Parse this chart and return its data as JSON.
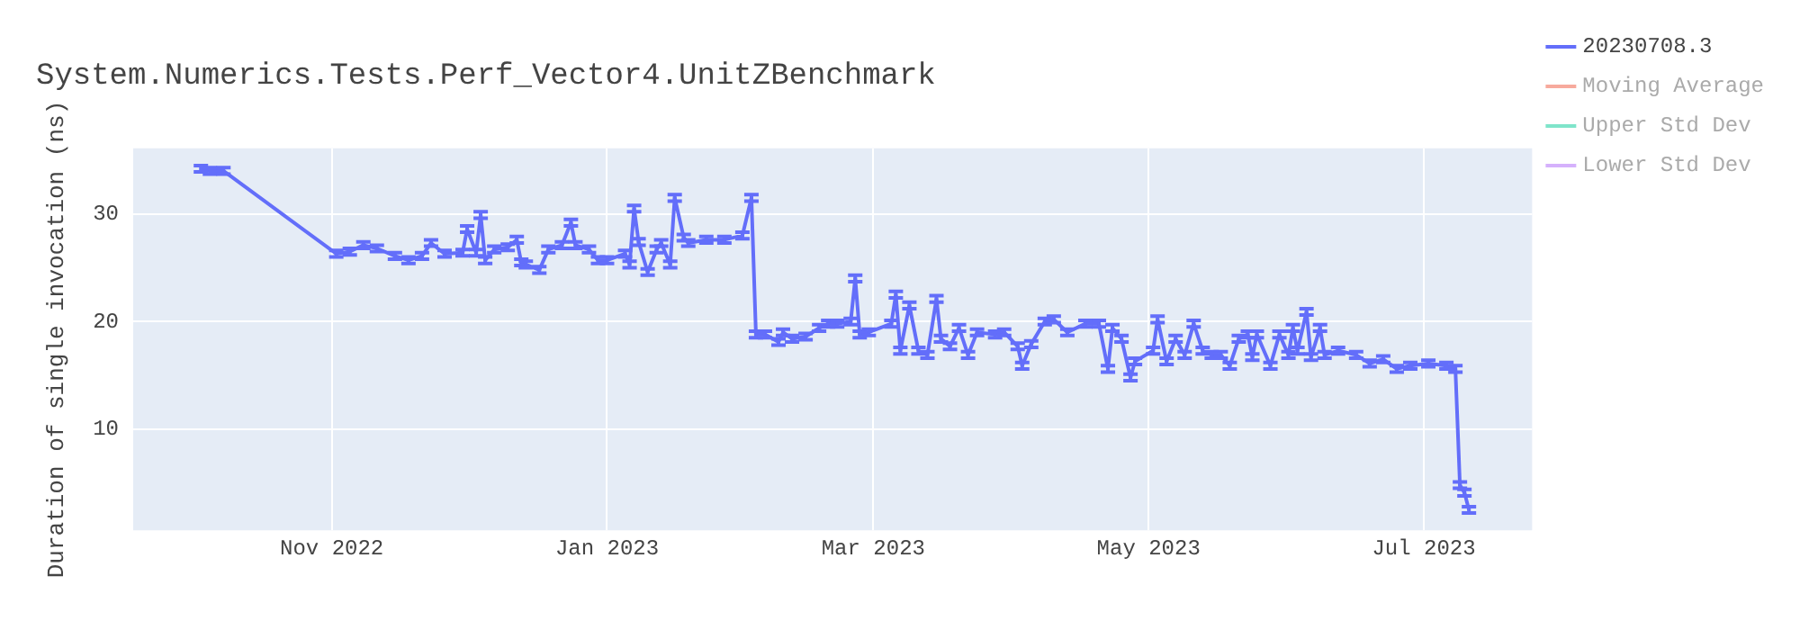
{
  "chart_data": {
    "type": "line",
    "title": "System.Numerics.Tests.Perf_Vector4.UnitZBenchmark",
    "ylabel": "Duration of single invocation (ns)",
    "x": [
      "2022-10-03",
      "2022-10-05",
      "2022-10-08",
      "2022-11-02",
      "2022-11-05",
      "2022-11-08",
      "2022-11-11",
      "2022-11-15",
      "2022-11-18",
      "2022-11-21",
      "2022-11-23",
      "2022-11-26",
      "2022-11-30",
      "2022-12-01",
      "2022-12-03",
      "2022-12-04",
      "2022-12-05",
      "2022-12-07",
      "2022-12-10",
      "2022-12-12",
      "2022-12-13",
      "2022-12-14",
      "2022-12-17",
      "2022-12-19",
      "2022-12-22",
      "2022-12-24",
      "2022-12-25",
      "2022-12-28",
      "2022-12-30",
      "2023-01-01",
      "2023-01-05",
      "2023-01-06",
      "2023-01-07",
      "2023-01-08",
      "2023-01-10",
      "2023-01-12",
      "2023-01-13",
      "2023-01-15",
      "2023-01-16",
      "2023-01-18",
      "2023-01-19",
      "2023-01-23",
      "2023-01-27",
      "2023-01-31",
      "2023-02-02",
      "2023-02-03",
      "2023-02-05",
      "2023-02-08",
      "2023-02-09",
      "2023-02-11",
      "2023-02-14",
      "2023-02-17",
      "2023-02-19",
      "2023-02-21",
      "2023-02-24",
      "2023-02-25",
      "2023-02-26",
      "2023-02-28",
      "2023-03-05",
      "2023-03-06",
      "2023-03-07",
      "2023-03-09",
      "2023-03-11",
      "2023-03-13",
      "2023-03-15",
      "2023-03-16",
      "2023-03-18",
      "2023-03-20",
      "2023-03-22",
      "2023-03-24",
      "2023-03-28",
      "2023-03-30",
      "2023-04-02",
      "2023-04-03",
      "2023-04-05",
      "2023-04-08",
      "2023-04-10",
      "2023-04-13",
      "2023-04-17",
      "2023-04-20",
      "2023-04-22",
      "2023-04-23",
      "2023-04-25",
      "2023-04-27",
      "2023-04-28",
      "2023-05-02",
      "2023-05-03",
      "2023-05-05",
      "2023-05-07",
      "2023-05-09",
      "2023-05-11",
      "2023-05-13",
      "2023-05-15",
      "2023-05-17",
      "2023-05-19",
      "2023-05-21",
      "2023-05-23",
      "2023-05-24",
      "2023-05-25",
      "2023-05-28",
      "2023-05-30",
      "2023-06-01",
      "2023-06-02",
      "2023-06-03",
      "2023-06-05",
      "2023-06-06",
      "2023-06-08",
      "2023-06-09",
      "2023-06-12",
      "2023-06-16",
      "2023-06-19",
      "2023-06-22",
      "2023-06-25",
      "2023-06-28",
      "2023-07-02",
      "2023-07-06",
      "2023-07-08",
      "2023-07-09",
      "2023-07-10",
      "2023-07-11"
    ],
    "series": [
      {
        "name": "20230708.3",
        "color": "#636efa",
        "values": [
          34.2,
          34.0,
          34.0,
          26.3,
          26.5,
          27.1,
          26.8,
          26.1,
          25.7,
          26.1,
          27.3,
          26.3,
          26.4,
          28.6,
          26.4,
          29.9,
          25.7,
          26.7,
          26.9,
          27.6,
          25.5,
          25.3,
          24.8,
          26.7,
          27.1,
          29.2,
          27.1,
          26.7,
          25.7,
          25.7,
          26.3,
          25.3,
          30.5,
          27.4,
          24.6,
          26.7,
          27.3,
          25.3,
          31.5,
          27.8,
          27.3,
          27.6,
          27.6,
          28.0,
          31.5,
          18.8,
          18.8,
          18.1,
          19.0,
          18.4,
          18.6,
          19.4,
          19.8,
          19.8,
          20.0,
          24.0,
          18.8,
          19.0,
          19.8,
          22.5,
          17.3,
          21.5,
          17.3,
          16.9,
          22.1,
          18.4,
          17.7,
          19.4,
          16.9,
          19.0,
          18.8,
          19.0,
          17.7,
          15.9,
          17.9,
          20.0,
          20.2,
          19.0,
          19.8,
          19.8,
          15.6,
          19.4,
          18.4,
          14.8,
          16.3,
          17.3,
          20.2,
          16.3,
          18.4,
          16.9,
          19.8,
          17.3,
          16.9,
          16.9,
          15.9,
          18.4,
          18.8,
          16.7,
          18.8,
          15.9,
          18.8,
          16.9,
          19.4,
          17.3,
          20.9,
          16.7,
          19.4,
          16.9,
          17.3,
          16.9,
          16.1,
          16.5,
          15.6,
          15.9,
          16.1,
          15.9,
          15.6,
          4.8,
          4.1,
          2.5
        ],
        "errors": [
          0.3,
          0.3,
          0.3,
          0.3,
          0.3,
          0.3,
          0.3,
          0.3,
          0.3,
          0.3,
          0.3,
          0.3,
          0.3,
          0.3,
          0.3,
          0.3,
          0.3,
          0.3,
          0.3,
          0.3,
          0.3,
          0.3,
          0.3,
          0.3,
          0.3,
          0.3,
          0.3,
          0.3,
          0.3,
          0.3,
          0.3,
          0.3,
          0.3,
          0.3,
          0.3,
          0.3,
          0.3,
          0.3,
          0.3,
          0.3,
          0.3,
          0.3,
          0.3,
          0.3,
          0.3,
          0.3,
          0.3,
          0.3,
          0.3,
          0.3,
          0.3,
          0.3,
          0.3,
          0.3,
          0.3,
          0.3,
          0.3,
          0.3,
          0.3,
          0.3,
          0.3,
          0.3,
          0.3,
          0.3,
          0.3,
          0.3,
          0.3,
          0.3,
          0.3,
          0.3,
          0.3,
          0.3,
          0.3,
          0.3,
          0.3,
          0.3,
          0.3,
          0.3,
          0.3,
          0.3,
          0.3,
          0.3,
          0.3,
          0.3,
          0.3,
          0.3,
          0.3,
          0.3,
          0.3,
          0.3,
          0.3,
          0.3,
          0.3,
          0.3,
          0.3,
          0.3,
          0.3,
          0.3,
          0.3,
          0.3,
          0.3,
          0.3,
          0.3,
          0.3,
          0.3,
          0.3,
          0.3,
          0.3,
          0.3,
          0.3,
          0.3,
          0.3,
          0.3,
          0.3,
          0.3,
          0.3,
          0.3,
          0.3,
          0.3,
          0.3
        ]
      },
      {
        "name": "Moving Average",
        "color": "#ef553b",
        "values": [
          null,
          null,
          null,
          null,
          null,
          null,
          null,
          null,
          null,
          null,
          null,
          null,
          null,
          null,
          null,
          null,
          null,
          null,
          null,
          null,
          null,
          null,
          null,
          null,
          null,
          null,
          null,
          null,
          null,
          null,
          null,
          null,
          null,
          null,
          null,
          null,
          null,
          null,
          null,
          null,
          null,
          null,
          null,
          null,
          null,
          null,
          null,
          null,
          null,
          null,
          null,
          null,
          null,
          null,
          null,
          null,
          null,
          null,
          null,
          null,
          null,
          null,
          null,
          null,
          null,
          null,
          null,
          null,
          null,
          null,
          null,
          null,
          null,
          null,
          null,
          null,
          null,
          null,
          null,
          null,
          null,
          null,
          null,
          null,
          null,
          null,
          null,
          null,
          null,
          null,
          null,
          null,
          null,
          null,
          null,
          null,
          null,
          null,
          null,
          null,
          null,
          null,
          null,
          null,
          null,
          null,
          null,
          null,
          null,
          null,
          null,
          null,
          null,
          null,
          null,
          null,
          null,
          null,
          null,
          null
        ]
      },
      {
        "name": "Upper Std Dev",
        "color": "#00cc96",
        "values": [
          null,
          null,
          null,
          null,
          null,
          null,
          null,
          null,
          null,
          null,
          null,
          null,
          null,
          null,
          null,
          null,
          null,
          null,
          null,
          null,
          null,
          null,
          null,
          null,
          null,
          null,
          null,
          null,
          null,
          null,
          null,
          null,
          null,
          null,
          null,
          null,
          null,
          null,
          null,
          null,
          null,
          null,
          null,
          null,
          null,
          null,
          null,
          null,
          null,
          null,
          null,
          null,
          null,
          null,
          null,
          null,
          null,
          null,
          null,
          null,
          null,
          null,
          null,
          null,
          null,
          null,
          null,
          null,
          null,
          null,
          null,
          null,
          null,
          null,
          null,
          null,
          null,
          null,
          null,
          null,
          null,
          null,
          null,
          null,
          null,
          null,
          null,
          null,
          null,
          null,
          null,
          null,
          null,
          null,
          null,
          null,
          null,
          null,
          null,
          null,
          null,
          null,
          null,
          null,
          null,
          null,
          null,
          null,
          null,
          null,
          null,
          null,
          null,
          null,
          null,
          null,
          null,
          null,
          null,
          null
        ]
      },
      {
        "name": "Lower Std Dev",
        "color": "#ab63fa",
        "values": [
          null,
          null,
          null,
          null,
          null,
          null,
          null,
          null,
          null,
          null,
          null,
          null,
          null,
          null,
          null,
          null,
          null,
          null,
          null,
          null,
          null,
          null,
          null,
          null,
          null,
          null,
          null,
          null,
          null,
          null,
          null,
          null,
          null,
          null,
          null,
          null,
          null,
          null,
          null,
          null,
          null,
          null,
          null,
          null,
          null,
          null,
          null,
          null,
          null,
          null,
          null,
          null,
          null,
          null,
          null,
          null,
          null,
          null,
          null,
          null,
          null,
          null,
          null,
          null,
          null,
          null,
          null,
          null,
          null,
          null,
          null,
          null,
          null,
          null,
          null,
          null,
          null,
          null,
          null,
          null,
          null,
          null,
          null,
          null,
          null,
          null,
          null,
          null,
          null,
          null,
          null,
          null,
          null,
          null,
          null,
          null,
          null,
          null,
          null,
          null,
          null,
          null,
          null,
          null,
          null,
          null,
          null,
          null,
          null,
          null,
          null,
          null,
          null,
          null,
          null,
          null,
          null,
          null,
          null,
          null
        ]
      }
    ],
    "xlim": [
      "2022-09-18",
      "2023-07-25"
    ],
    "ylim": [
      0.6,
      36.1
    ],
    "xticks": [
      {
        "value": "2022-11-01",
        "label": "Nov 2022"
      },
      {
        "value": "2023-01-01",
        "label": "Jan 2023"
      },
      {
        "value": "2023-03-01",
        "label": "Mar 2023"
      },
      {
        "value": "2023-05-01",
        "label": "May 2023"
      },
      {
        "value": "2023-07-01",
        "label": "Jul 2023"
      }
    ],
    "yticks": [
      10,
      20,
      30
    ],
    "grid": true,
    "legend": "top right"
  }
}
